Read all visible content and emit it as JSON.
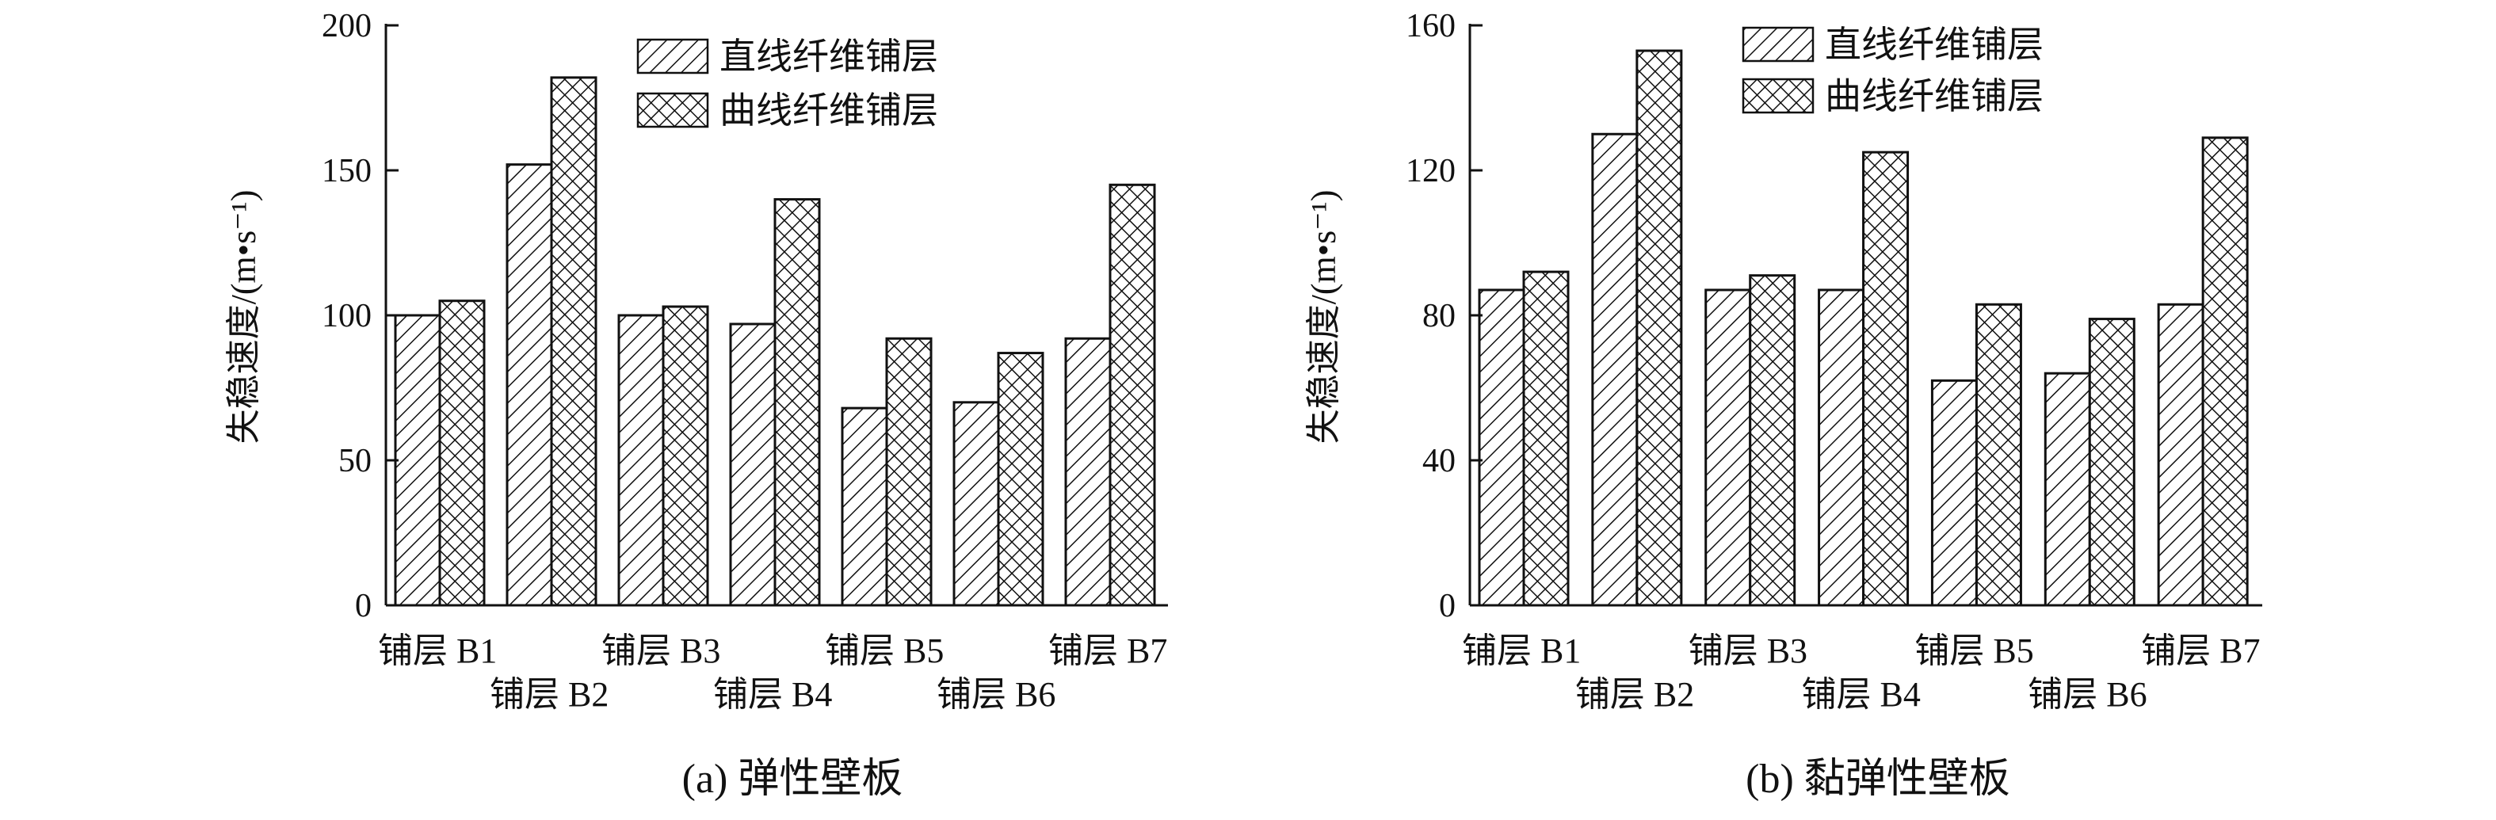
{
  "legend": {
    "straight": "直线纤维铺层",
    "curved": "曲线纤维铺层"
  },
  "panels": [
    {
      "caption": "(a) 弹性壁板",
      "ylabel": "失稳速度/(m•s⁻¹)"
    },
    {
      "caption": "(b) 黏弹性壁板",
      "ylabel": "失稳速度/(m•s⁻¹)"
    }
  ],
  "chart_data": [
    {
      "type": "bar",
      "title": "(a) 弹性壁板",
      "xlabel": "",
      "ylabel": "失稳速度/(m•s⁻¹)",
      "categories": [
        "铺层 B1",
        "铺层 B2",
        "铺层 B3",
        "铺层 B4",
        "铺层 B5",
        "铺层 B6",
        "铺层 B7"
      ],
      "ylim": [
        0,
        200
      ],
      "yticks": [
        0,
        50,
        100,
        150,
        200
      ],
      "legend_position": "top-center",
      "grid": false,
      "series": [
        {
          "name": "直线纤维铺层",
          "pattern": "diagonal-hatch",
          "values": [
            100,
            152,
            100,
            97,
            68,
            70,
            92
          ]
        },
        {
          "name": "曲线纤维铺层",
          "pattern": "cross-hatch",
          "values": [
            105,
            182,
            103,
            140,
            92,
            87,
            145
          ]
        }
      ]
    },
    {
      "type": "bar",
      "title": "(b) 黏弹性壁板",
      "xlabel": "",
      "ylabel": "失稳速度/(m•s⁻¹)",
      "categories": [
        "铺层 B1",
        "铺层 B2",
        "铺层 B3",
        "铺层 B4",
        "铺层 B5",
        "铺层 B6",
        "铺层 B7"
      ],
      "ylim": [
        0,
        160
      ],
      "yticks": [
        0,
        40,
        80,
        120,
        160
      ],
      "legend_position": "top-center",
      "grid": false,
      "series": [
        {
          "name": "直线纤维铺层",
          "pattern": "diagonal-hatch",
          "values": [
            87,
            130,
            87,
            87,
            62,
            64,
            83
          ]
        },
        {
          "name": "曲线纤维铺层",
          "pattern": "cross-hatch",
          "values": [
            92,
            153,
            91,
            125,
            83,
            79,
            129
          ]
        }
      ]
    }
  ]
}
